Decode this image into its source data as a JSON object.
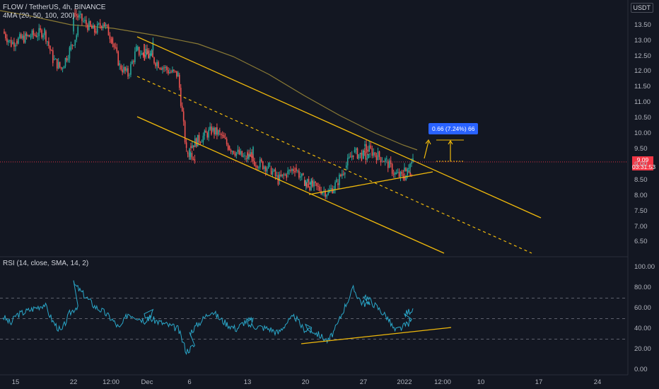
{
  "header": {
    "symbol_line": "FLOW / TetherUS, 4h, BINANCE",
    "ma_line": "4MA (20, 50, 100, 200)",
    "currency": "USDT"
  },
  "price_tag": {
    "price": "9.09",
    "countdown": "03:31:53"
  },
  "annotation": {
    "text": "0.66 (7.24%) 66"
  },
  "rsi": {
    "title": "RSI (14, close, SMA, 14, 2)"
  },
  "colors": {
    "background": "#131722",
    "up": "#26a69a",
    "down": "#ef5350",
    "trendline": "#f0b90b",
    "ma": "#8a7a35",
    "rsi_line": "#2aa7c9",
    "price_line": "#f23645",
    "measure_label": "#2962ff"
  },
  "chart_data": [
    {
      "type": "candlestick",
      "title": "FLOW / TetherUS, 4h, BINANCE",
      "x_tick_labels": [
        "15",
        "22",
        "12:00",
        "Dec",
        "6",
        "13",
        "20",
        "27",
        "2022",
        "12:00",
        "10",
        "17",
        "24"
      ],
      "y_tick_labels": [
        "13.50",
        "13.00",
        "12.50",
        "12.00",
        "11.50",
        "11.00",
        "10.50",
        "10.00",
        "9.50",
        "9.00",
        "8.50",
        "8.00",
        "7.50",
        "7.00",
        "6.50"
      ],
      "ylim": [
        6.1,
        14.2
      ],
      "last_price": 9.09,
      "close_series_approx": [
        {
          "x": "Nov 12",
          "y": 13.3
        },
        {
          "x": "Nov 13",
          "y": 12.9
        },
        {
          "x": "Nov 15",
          "y": 13.0
        },
        {
          "x": "Nov 17",
          "y": 13.3
        },
        {
          "x": "Nov 18",
          "y": 12.4
        },
        {
          "x": "Nov 19",
          "y": 12.1
        },
        {
          "x": "Nov 20",
          "y": 12.7
        },
        {
          "x": "Nov 21",
          "y": 13.3
        },
        {
          "x": "Nov 22",
          "y": 13.9
        },
        {
          "x": "Nov 23",
          "y": 13.3
        },
        {
          "x": "Nov 24",
          "y": 13.6
        },
        {
          "x": "Nov 25",
          "y": 13.1
        },
        {
          "x": "Nov 26",
          "y": 12.2
        },
        {
          "x": "Nov 27",
          "y": 11.9
        },
        {
          "x": "Nov 28",
          "y": 12.7
        },
        {
          "x": "Nov 29",
          "y": 12.5
        },
        {
          "x": "Nov 30",
          "y": 12.9
        },
        {
          "x": "Dec 1",
          "y": 12.6
        },
        {
          "x": "Dec 2",
          "y": 12.0
        },
        {
          "x": "Dec 3",
          "y": 11.9
        },
        {
          "x": "Dec 4",
          "y": 9.4
        },
        {
          "x": "Dec 5",
          "y": 9.3
        },
        {
          "x": "Dec 6",
          "y": 9.6
        },
        {
          "x": "Dec 7",
          "y": 10.1
        },
        {
          "x": "Dec 8",
          "y": 10.0
        },
        {
          "x": "Dec 9",
          "y": 9.6
        },
        {
          "x": "Dec 10",
          "y": 9.4
        },
        {
          "x": "Dec 11",
          "y": 9.2
        },
        {
          "x": "Dec 12",
          "y": 9.4
        },
        {
          "x": "Dec 13",
          "y": 9.2
        },
        {
          "x": "Dec 14",
          "y": 8.9
        },
        {
          "x": "Dec 15",
          "y": 8.5
        },
        {
          "x": "Dec 16",
          "y": 8.7
        },
        {
          "x": "Dec 17",
          "y": 8.9
        },
        {
          "x": "Dec 18",
          "y": 8.5
        },
        {
          "x": "Dec 19",
          "y": 8.4
        },
        {
          "x": "Dec 20",
          "y": 8.4
        },
        {
          "x": "Dec 21",
          "y": 8.1
        },
        {
          "x": "Dec 22",
          "y": 8.4
        },
        {
          "x": "Dec 23",
          "y": 8.9
        },
        {
          "x": "Dec 24",
          "y": 9.4
        },
        {
          "x": "Dec 25",
          "y": 9.3
        },
        {
          "x": "Dec 26",
          "y": 9.2
        },
        {
          "x": "Dec 27",
          "y": 9.6
        },
        {
          "x": "Dec 28",
          "y": 9.1
        },
        {
          "x": "Dec 29",
          "y": 8.7
        },
        {
          "x": "Dec 30",
          "y": 8.6
        },
        {
          "x": "Dec 31",
          "y": 8.8
        },
        {
          "x": "Jan 1",
          "y": 8.9
        },
        {
          "x": "Jan 2",
          "y": 9.09
        }
      ]
    },
    {
      "type": "line",
      "title": "RSI (14, close, SMA, 14, 2)",
      "y_tick_labels": [
        "100.00",
        "80.00",
        "60.00",
        "40.00",
        "20.00",
        "0.00"
      ],
      "ylim": [
        0,
        100
      ],
      "bands": [
        70,
        50,
        30
      ],
      "series": [
        {
          "values": [
            {
              "x": "Nov 12",
              "y": 52
            },
            {
              "x": "Nov 13",
              "y": 45
            },
            {
              "x": "Nov 15",
              "y": 53
            },
            {
              "x": "Nov 17",
              "y": 64
            },
            {
              "x": "Nov 18",
              "y": 47
            },
            {
              "x": "Nov 19",
              "y": 37
            },
            {
              "x": "Nov 20",
              "y": 55
            },
            {
              "x": "Nov 21",
              "y": 63
            },
            {
              "x": "Nov 22",
              "y": 84
            },
            {
              "x": "Nov 23",
              "y": 62
            },
            {
              "x": "Nov 24",
              "y": 57
            },
            {
              "x": "Nov 25",
              "y": 50
            },
            {
              "x": "Nov 26",
              "y": 40
            },
            {
              "x": "Nov 27",
              "y": 55
            },
            {
              "x": "Nov 28",
              "y": 52
            },
            {
              "x": "Nov 29",
              "y": 48
            },
            {
              "x": "Nov 30",
              "y": 57
            },
            {
              "x": "Dec 1",
              "y": 52
            },
            {
              "x": "Dec 2",
              "y": 43
            },
            {
              "x": "Dec 3",
              "y": 40
            },
            {
              "x": "Dec 4",
              "y": 18
            },
            {
              "x": "Dec 5",
              "y": 24
            },
            {
              "x": "Dec 6",
              "y": 36
            },
            {
              "x": "Dec 7",
              "y": 58
            },
            {
              "x": "Dec 8",
              "y": 50
            },
            {
              "x": "Dec 9",
              "y": 44
            },
            {
              "x": "Dec 10",
              "y": 40
            },
            {
              "x": "Dec 11",
              "y": 47
            },
            {
              "x": "Dec 12",
              "y": 49
            },
            {
              "x": "Dec 13",
              "y": 44
            },
            {
              "x": "Dec 14",
              "y": 40
            },
            {
              "x": "Dec 15",
              "y": 36
            },
            {
              "x": "Dec 16",
              "y": 46
            },
            {
              "x": "Dec 17",
              "y": 52
            },
            {
              "x": "Dec 18",
              "y": 40
            },
            {
              "x": "Dec 19",
              "y": 38
            },
            {
              "x": "Dec 20",
              "y": 43
            },
            {
              "x": "Dec 21",
              "y": 28
            },
            {
              "x": "Dec 22",
              "y": 42
            },
            {
              "x": "Dec 23",
              "y": 62
            },
            {
              "x": "Dec 24",
              "y": 79
            },
            {
              "x": "Dec 25",
              "y": 66
            },
            {
              "x": "Dec 26",
              "y": 63
            },
            {
              "x": "Dec 27",
              "y": 74
            },
            {
              "x": "Dec 28",
              "y": 52
            },
            {
              "x": "Dec 29",
              "y": 38
            },
            {
              "x": "Dec 30",
              "y": 42
            },
            {
              "x": "Dec 31",
              "y": 48
            },
            {
              "x": "Jan 1",
              "y": 54
            },
            {
              "x": "Jan 2",
              "y": 60
            }
          ]
        }
      ]
    }
  ]
}
